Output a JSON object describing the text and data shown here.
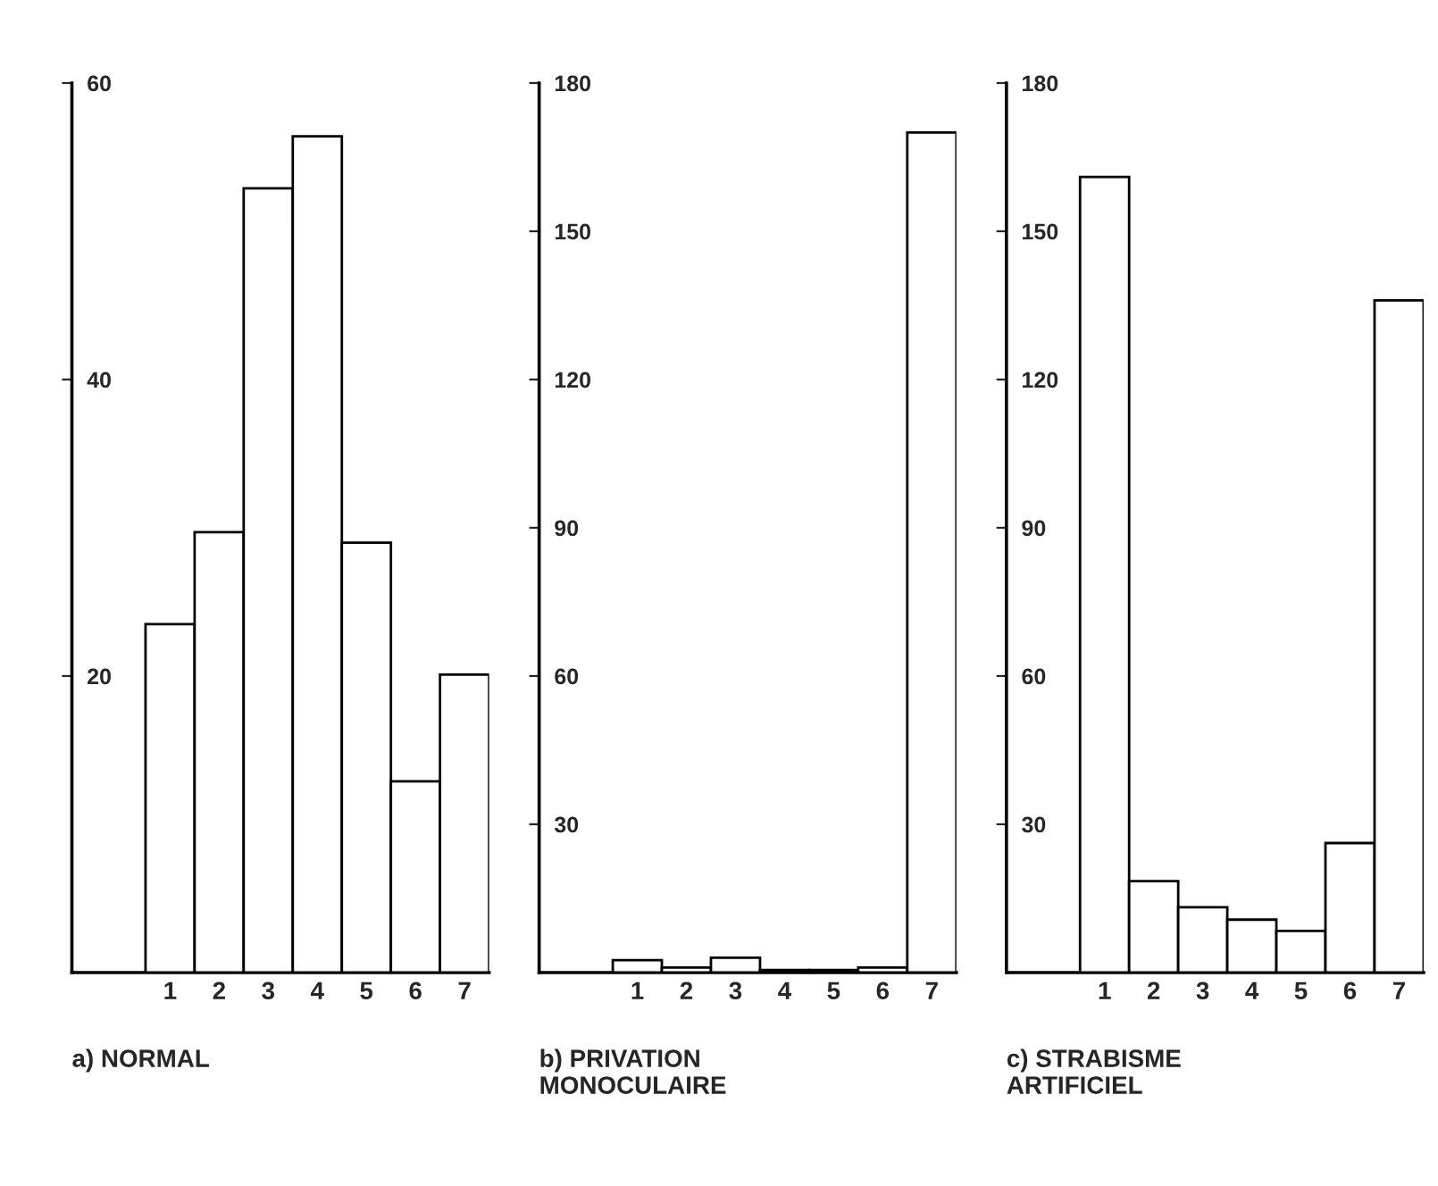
{
  "chart_data": [
    {
      "type": "bar",
      "xlabel": "a) NORMAL",
      "categories": [
        "1",
        "2",
        "3",
        "4",
        "5",
        "6",
        "7"
      ],
      "values": [
        23.5,
        29.7,
        52.9,
        56.4,
        29.0,
        12.9,
        20.1
      ],
      "color": "#ffffff",
      "ylim": [
        0,
        60
      ],
      "yticks": [
        20,
        40,
        60
      ],
      "grid": false,
      "legend": false
    },
    {
      "type": "bar",
      "xlabel": "b) PRIVATION\nMONOCULAIRE",
      "categories": [
        "1",
        "2",
        "3",
        "4",
        "5",
        "6",
        "7"
      ],
      "values": [
        2.5,
        1,
        3,
        0.5,
        0.5,
        1,
        170
      ],
      "color": "#ffffff",
      "ylim": [
        0,
        180
      ],
      "yticks": [
        30,
        60,
        90,
        120,
        150,
        180
      ],
      "grid": false,
      "legend": false
    },
    {
      "type": "bar",
      "xlabel": "c) STRABISME\nARTIFICIEL",
      "categories": [
        "1",
        "2",
        "3",
        "4",
        "5",
        "6",
        "7"
      ],
      "values": [
        161,
        18.5,
        13.2,
        10.7,
        8.4,
        26.2,
        136
      ],
      "color": "#ffffff",
      "ylim": [
        0,
        180
      ],
      "yticks": [
        30,
        60,
        90,
        120,
        150,
        180
      ],
      "grid": false,
      "legend": false
    }
  ]
}
